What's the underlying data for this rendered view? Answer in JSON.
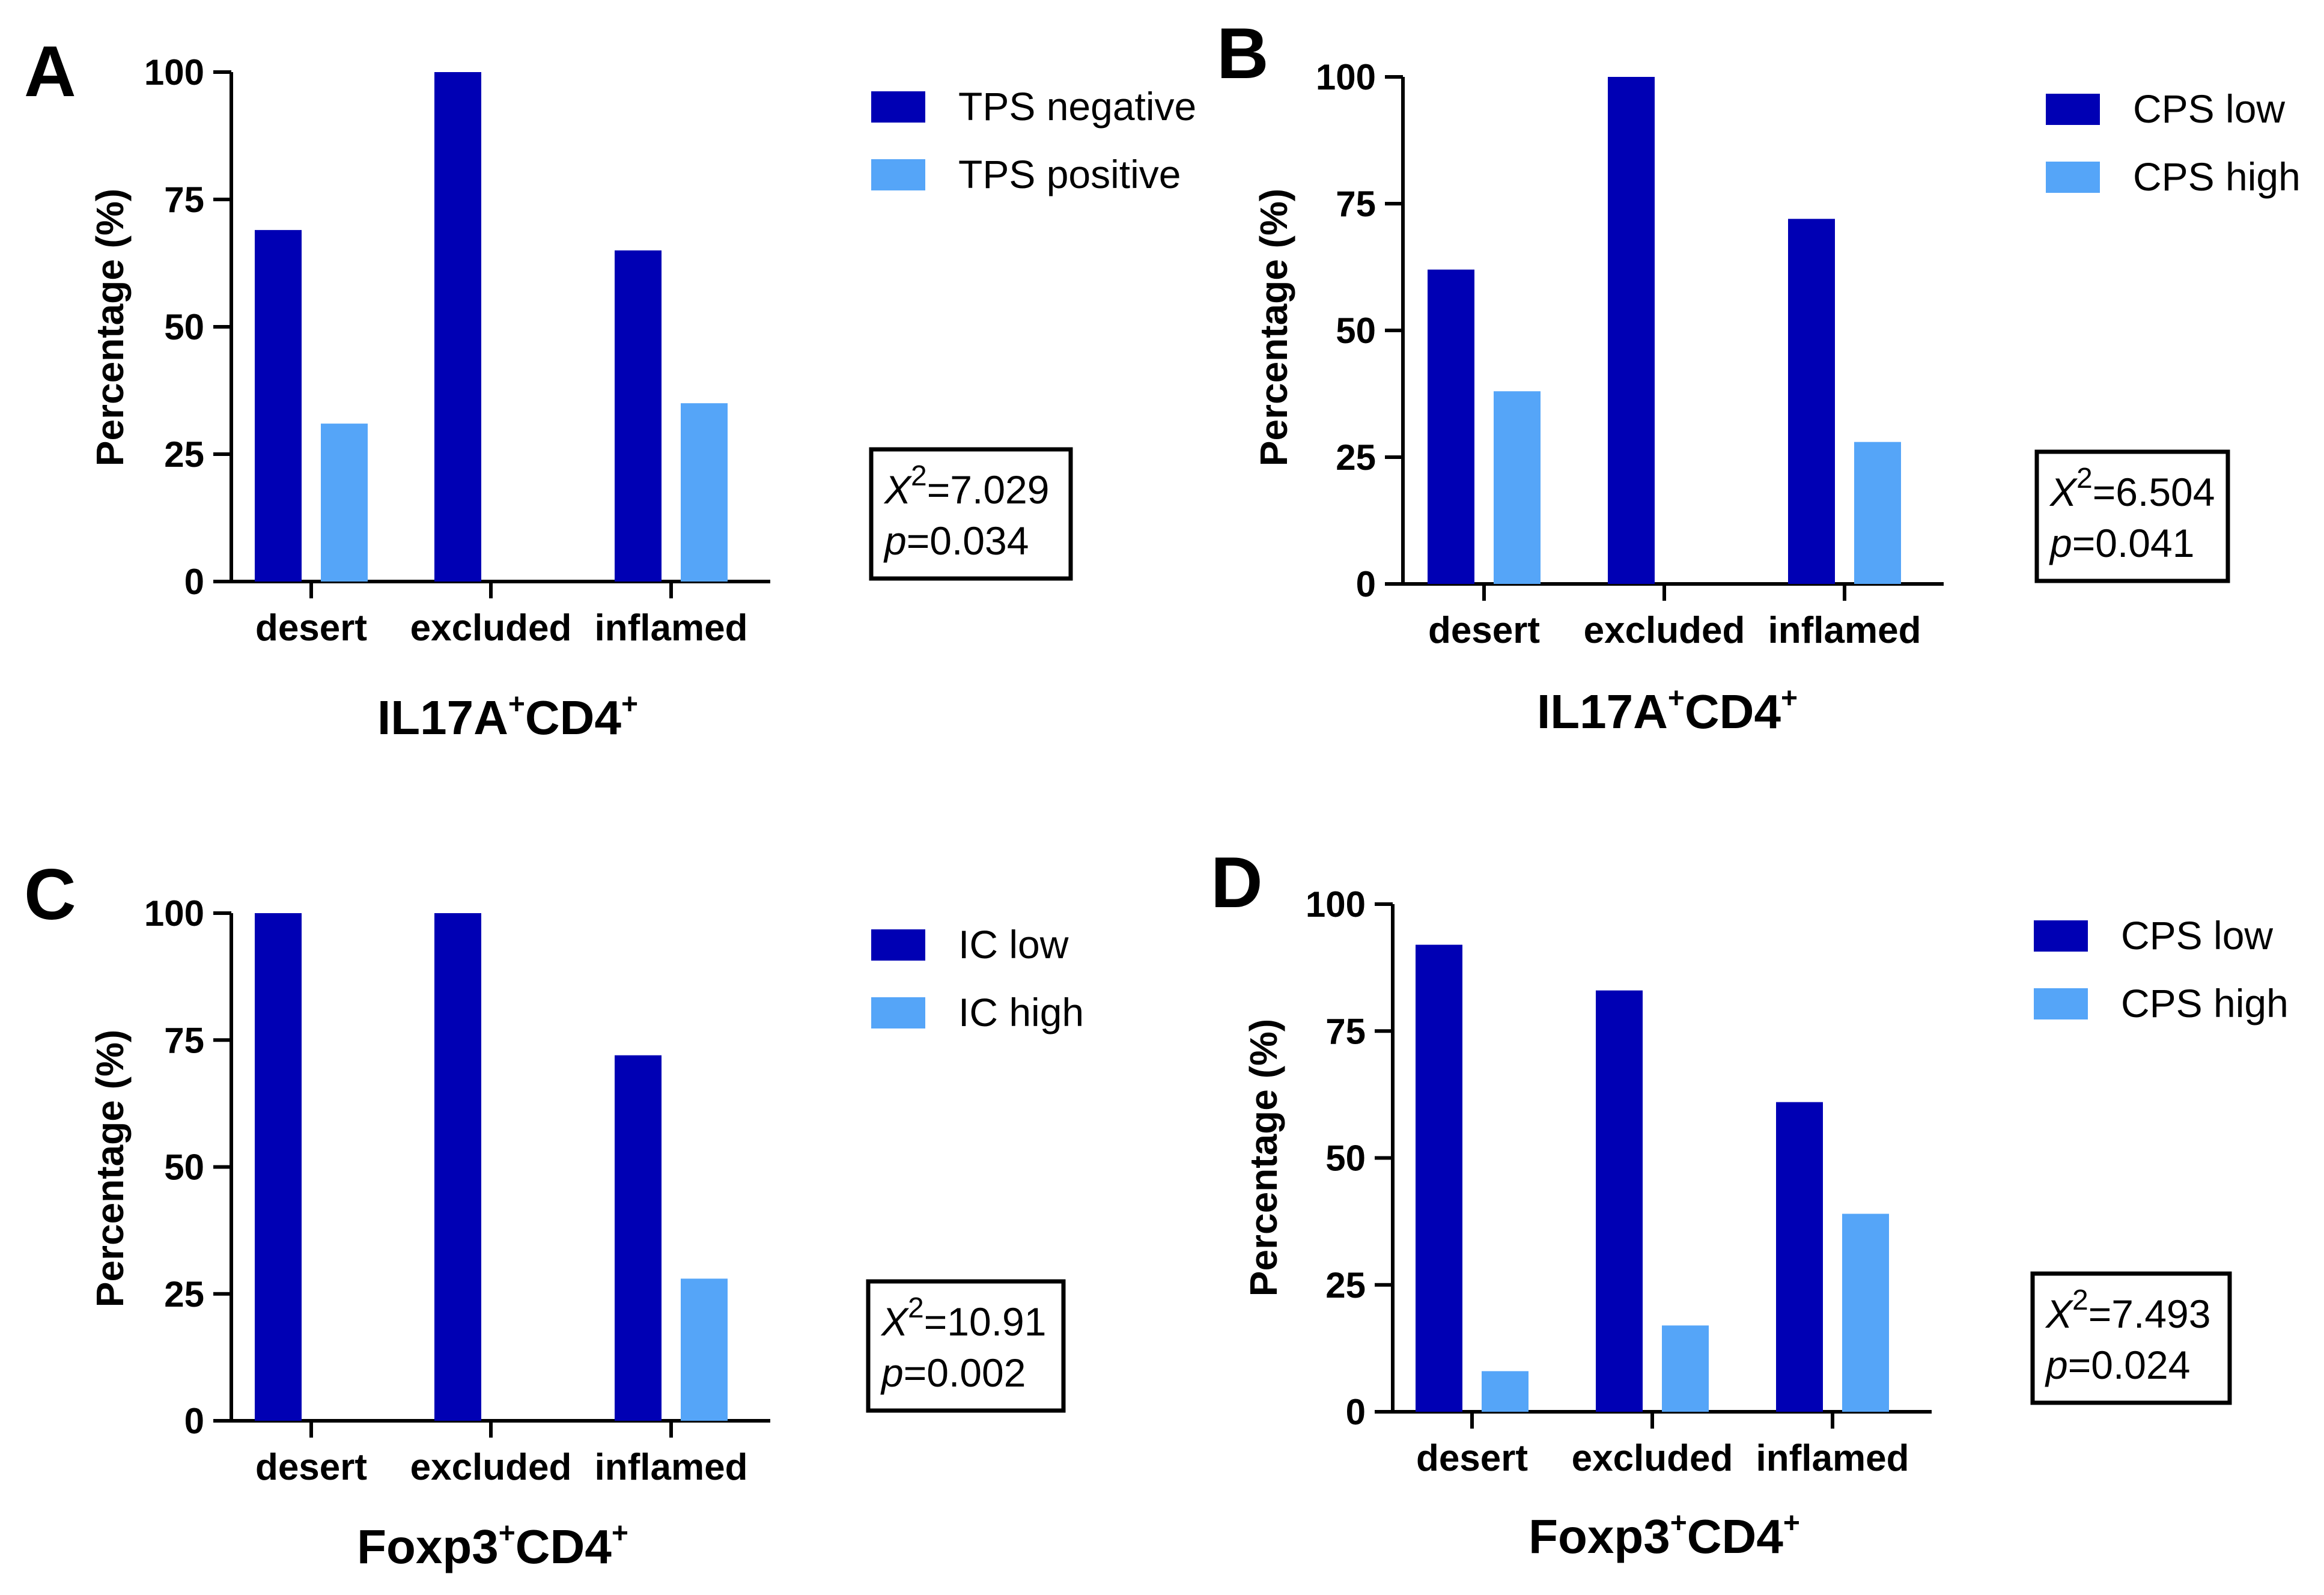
{
  "colors": {
    "series1": "#0000b4",
    "series2": "#55a5f8",
    "axis": "#000000"
  },
  "chart_data": [
    {
      "panel": "A",
      "type": "bar",
      "categories": [
        "desert",
        "excluded",
        "inflamed"
      ],
      "series": [
        {
          "name": "TPS negative",
          "values": [
            69,
            100,
            65
          ]
        },
        {
          "name": "TPS positive",
          "values": [
            31,
            0,
            35
          ]
        }
      ],
      "ylabel": "Percentage (%)",
      "title_main": "IL17A",
      "title_sup1": "+",
      "title_mid": "CD4",
      "title_sup2": "+",
      "ylim": [
        0,
        100
      ],
      "yticks": [
        "0",
        "25",
        "50",
        "75",
        "100"
      ],
      "stat": {
        "chi_symbol": "X",
        "chi_exp": "2",
        "chi_value": "=7.029",
        "p_symbol": "p",
        "p_value": "=0.034"
      },
      "legend_position": "top-right"
    },
    {
      "panel": "B",
      "type": "bar",
      "categories": [
        "desert",
        "excluded",
        "inflamed"
      ],
      "series": [
        {
          "name": "CPS low",
          "values": [
            62,
            100,
            72
          ]
        },
        {
          "name": "CPS high",
          "values": [
            38,
            0,
            28
          ]
        }
      ],
      "ylabel": "Percentage (%)",
      "title_main": "IL17A",
      "title_sup1": "+",
      "title_mid": "CD4",
      "title_sup2": "+",
      "ylim": [
        0,
        100
      ],
      "yticks": [
        "0",
        "25",
        "50",
        "75",
        "100"
      ],
      "stat": {
        "chi_symbol": "X",
        "chi_exp": "2",
        "chi_value": "=6.504",
        "p_symbol": "p",
        "p_value": "=0.041"
      },
      "legend_position": "top-right"
    },
    {
      "panel": "C",
      "type": "bar",
      "categories": [
        "desert",
        "excluded",
        "inflamed"
      ],
      "series": [
        {
          "name": "IC low",
          "values": [
            100,
            100,
            72
          ]
        },
        {
          "name": "IC high",
          "values": [
            0,
            0,
            28
          ]
        }
      ],
      "ylabel": "Percentage (%)",
      "title_main": "Foxp3",
      "title_sup1": "+",
      "title_mid": "CD4",
      "title_sup2": "+",
      "ylim": [
        0,
        100
      ],
      "yticks": [
        "0",
        "25",
        "50",
        "75",
        "100"
      ],
      "stat": {
        "chi_symbol": "X",
        "chi_exp": "2",
        "chi_value": "=10.91",
        "p_symbol": "p",
        "p_value": "=0.002"
      },
      "legend_position": "top-right"
    },
    {
      "panel": "D",
      "type": "bar",
      "categories": [
        "desert",
        "excluded",
        "inflamed"
      ],
      "series": [
        {
          "name": "CPS low",
          "values": [
            92,
            83,
            61
          ]
        },
        {
          "name": "CPS high",
          "values": [
            8,
            17,
            39
          ]
        }
      ],
      "ylabel": "Percentage (%)",
      "title_main": "Foxp3",
      "title_sup1": "+",
      "title_mid": "CD4",
      "title_sup2": "+",
      "ylim": [
        0,
        100
      ],
      "yticks": [
        "0",
        "25",
        "50",
        "75",
        "100"
      ],
      "stat": {
        "chi_symbol": "X",
        "chi_exp": "2",
        "chi_value": "=7.493",
        "p_symbol": "p",
        "p_value": "=0.024"
      },
      "legend_position": "top-right"
    }
  ]
}
